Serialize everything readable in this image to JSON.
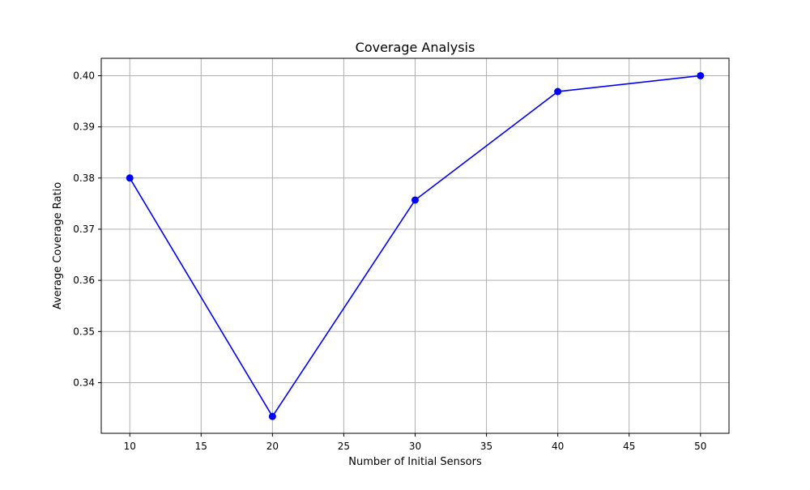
{
  "chart_data": {
    "type": "line",
    "title": "Coverage Analysis",
    "xlabel": "Number of Initial Sensors",
    "ylabel": "Average Coverage Ratio",
    "xlim": [
      8,
      52
    ],
    "ylim": [
      0.3301,
      0.4034
    ],
    "xticks": [
      10,
      15,
      20,
      25,
      30,
      35,
      40,
      45,
      50
    ],
    "xtick_labels": [
      "10",
      "15",
      "20",
      "25",
      "30",
      "35",
      "40",
      "45",
      "50"
    ],
    "yticks": [
      0.34,
      0.35,
      0.36,
      0.37,
      0.38,
      0.39,
      0.4
    ],
    "ytick_labels": [
      "0.34",
      "0.35",
      "0.36",
      "0.37",
      "0.38",
      "0.39",
      "0.40"
    ],
    "grid": true,
    "series": [
      {
        "x": [
          10,
          20,
          30,
          40,
          50
        ],
        "y": [
          0.38,
          0.3334,
          0.3757,
          0.3969,
          0.4
        ],
        "color": "#0000ff",
        "marker": "circle"
      }
    ]
  }
}
